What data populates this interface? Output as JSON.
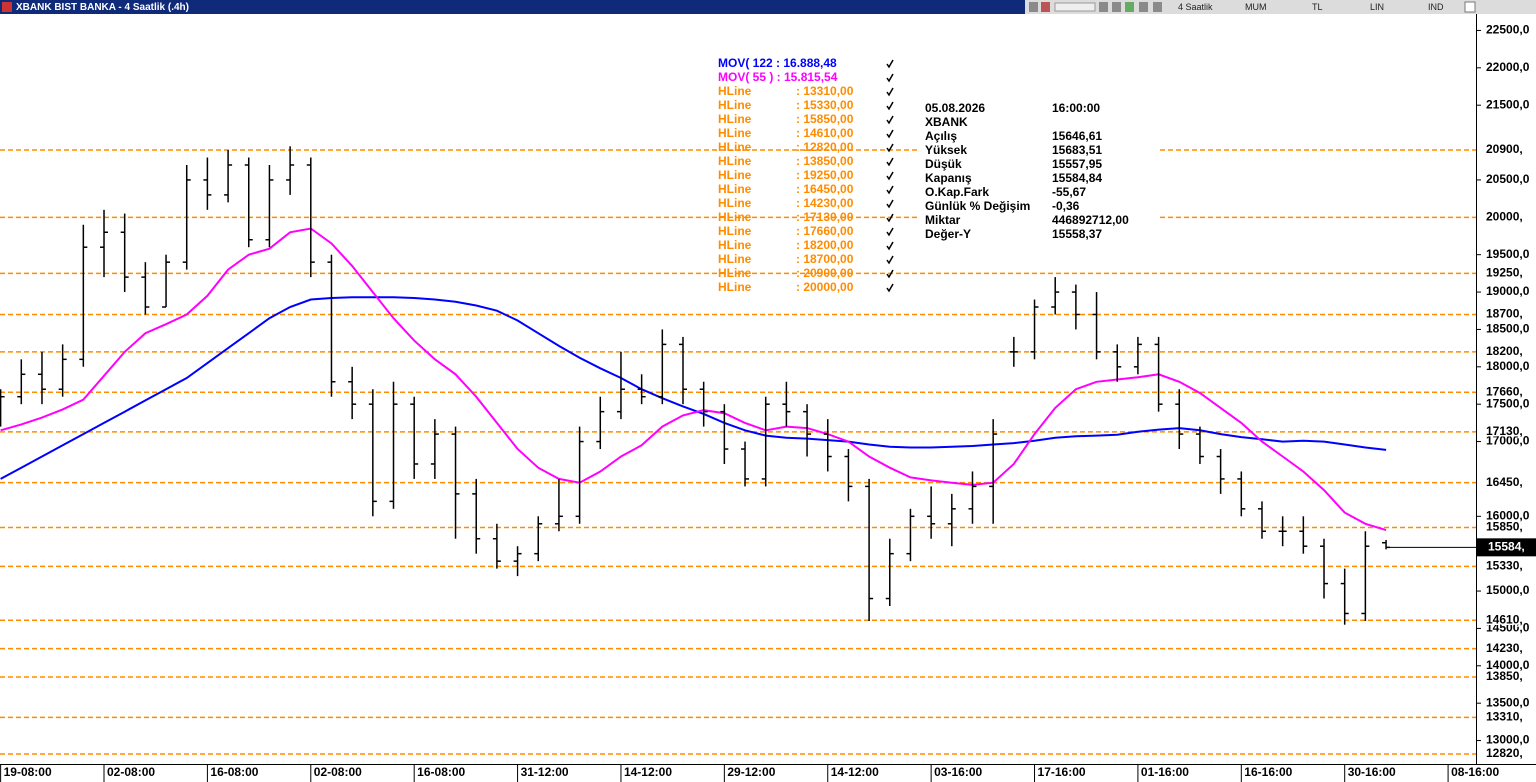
{
  "chart_data": {
    "type": "candlestick",
    "title": "XBANK BIST BANKA - 4 Saatlik (.4h)",
    "toolbar": [
      "4 Saatlik",
      "MUM",
      "TL",
      "LIN",
      "IND"
    ],
    "x": [
      0,
      1,
      2,
      3,
      4,
      5,
      6,
      7,
      8,
      9,
      10,
      11,
      12,
      13,
      14,
      15,
      16,
      17,
      18,
      19,
      20,
      21,
      22,
      23,
      24,
      25,
      26,
      27,
      28,
      29,
      30,
      31,
      32,
      33,
      34,
      35,
      36,
      37,
      38,
      39,
      40,
      41,
      42,
      43,
      44,
      45,
      46,
      47,
      48,
      49,
      50,
      51,
      52,
      53,
      54,
      55,
      56,
      57,
      58,
      59,
      60,
      61,
      62,
      63,
      64,
      65,
      66,
      67
    ],
    "open": [
      17300,
      17600,
      17900,
      17700,
      18100,
      19600,
      19800,
      19200,
      18800,
      19400,
      20500,
      20300,
      20700,
      19700,
      20500,
      20700,
      19400,
      17800,
      17500,
      16200,
      17500,
      16700,
      17100,
      16300,
      15700,
      15400,
      15500,
      15900,
      16000,
      17000,
      17400,
      17700,
      17600,
      18300,
      17700,
      17400,
      16900,
      16500,
      17500,
      17400,
      17100,
      16800,
      16400,
      14900,
      15500,
      16000,
      15900,
      16100,
      16400,
      18200,
      18200,
      18800,
      19000,
      18700,
      18200,
      18000,
      18300,
      17500,
      17100,
      16800,
      16500,
      16100,
      15800,
      15800,
      15600,
      15100,
      14700,
      15646.61
    ],
    "high": [
      17700,
      18100,
      18200,
      18300,
      19900,
      20100,
      20050,
      19400,
      19500,
      20700,
      20800,
      20900,
      20800,
      20700,
      20950,
      20800,
      19500,
      18000,
      17700,
      17800,
      17600,
      17300,
      17200,
      16500,
      15900,
      15600,
      16000,
      16500,
      17200,
      17600,
      18200,
      17900,
      18500,
      18400,
      17800,
      17500,
      17000,
      17600,
      17800,
      17500,
      17300,
      16900,
      16500,
      15700,
      16100,
      16400,
      16300,
      16600,
      17300,
      18400,
      18900,
      19200,
      19100,
      19000,
      18300,
      18400,
      18400,
      17700,
      17200,
      16900,
      16600,
      16200,
      16000,
      16000,
      15700,
      15300,
      15800,
      15683.51
    ],
    "low": [
      17200,
      17500,
      17500,
      17600,
      18000,
      19200,
      19000,
      18700,
      18800,
      19300,
      20100,
      20200,
      19600,
      19600,
      20300,
      19200,
      17600,
      17300,
      16000,
      16100,
      16500,
      16500,
      15700,
      15500,
      15300,
      15200,
      15400,
      15800,
      15900,
      16900,
      17300,
      17500,
      17500,
      17500,
      17200,
      16700,
      16400,
      16400,
      17200,
      16800,
      16600,
      16200,
      14600,
      14800,
      15400,
      15700,
      15600,
      15900,
      15900,
      18000,
      18100,
      18700,
      18500,
      18100,
      17800,
      17900,
      17400,
      16900,
      16700,
      16300,
      16000,
      15700,
      15600,
      15500,
      14900,
      14550,
      14600,
      15557.95
    ],
    "close": [
      17600,
      17900,
      17700,
      18100,
      19600,
      19800,
      19200,
      18800,
      19400,
      20500,
      20300,
      20700,
      19700,
      20500,
      20700,
      19400,
      17800,
      17500,
      16200,
      17500,
      16700,
      17100,
      16300,
      15700,
      15400,
      15500,
      15900,
      16000,
      17000,
      17400,
      17700,
      17600,
      18300,
      17700,
      17400,
      16900,
      16500,
      17500,
      17400,
      17100,
      16800,
      16400,
      14900,
      15500,
      16000,
      15900,
      16100,
      16400,
      17100,
      18200,
      18800,
      19000,
      18700,
      18200,
      18000,
      18300,
      17500,
      17100,
      16800,
      16500,
      16100,
      15800,
      15800,
      15600,
      15100,
      14700,
      15600,
      15584.84
    ],
    "color": "#000000",
    "series": [
      {
        "name": "MOV( 122 : 16.888,48",
        "color": "#0000ff",
        "values": [
          16500,
          16650,
          16800,
          16950,
          17100,
          17250,
          17400,
          17550,
          17700,
          17850,
          18050,
          18250,
          18450,
          18650,
          18800,
          18900,
          18920,
          18930,
          18930,
          18930,
          18920,
          18900,
          18870,
          18820,
          18750,
          18620,
          18450,
          18280,
          18120,
          17980,
          17850,
          17700,
          17580,
          17470,
          17370,
          17250,
          17150,
          17080,
          17050,
          17040,
          17020,
          17000,
          16960,
          16930,
          16920,
          16920,
          16930,
          16940,
          16960,
          16980,
          17010,
          17050,
          17070,
          17080,
          17090,
          17130,
          17160,
          17180,
          17150,
          17100,
          17060,
          17030,
          17000,
          17010,
          17000,
          16960,
          16920,
          16888.48
        ]
      },
      {
        "name": "MOV( 55 ) : 15.815,54",
        "color": "#ff00ff",
        "values": [
          17150,
          17230,
          17320,
          17430,
          17560,
          17880,
          18200,
          18450,
          18570,
          18700,
          18950,
          19300,
          19500,
          19580,
          19800,
          19850,
          19650,
          19350,
          19000,
          18650,
          18350,
          18100,
          17900,
          17600,
          17250,
          16900,
          16650,
          16500,
          16450,
          16600,
          16800,
          16950,
          17200,
          17350,
          17420,
          17380,
          17250,
          17150,
          17200,
          17180,
          17100,
          17000,
          16800,
          16650,
          16520,
          16480,
          16450,
          16420,
          16450,
          16700,
          17100,
          17450,
          17700,
          17800,
          17830,
          17860,
          17900,
          17800,
          17650,
          17450,
          17250,
          17000,
          16800,
          16600,
          16350,
          16050,
          15900,
          15815.54
        ]
      }
    ],
    "hline_color": "#ff8c00",
    "hlines": [
      {
        "name": "HLine",
        "value": 13310,
        "label": ": 13310,00",
        "axis_label": "13310,"
      },
      {
        "name": "HLine",
        "value": 15330,
        "label": ": 15330,00",
        "axis_label": "15330,"
      },
      {
        "name": "HLine",
        "value": 15850,
        "label": ": 15850,00",
        "axis_label": "15850,"
      },
      {
        "name": "HLine",
        "value": 14610,
        "label": ": 14610,00",
        "axis_label": "14610,"
      },
      {
        "name": "HLine",
        "value": 12820,
        "label": ": 12820,00",
        "axis_label": "12820,"
      },
      {
        "name": "HLine",
        "value": 13850,
        "label": ": 13850,00",
        "axis_label": "13850,"
      },
      {
        "name": "HLine",
        "value": 19250,
        "label": ": 19250,00",
        "axis_label": "19250,"
      },
      {
        "name": "HLine",
        "value": 16450,
        "label": ": 16450,00",
        "axis_label": "16450,"
      },
      {
        "name": "HLine",
        "value": 14230,
        "label": ": 14230,00",
        "axis_label": "14230,"
      },
      {
        "name": "HLine",
        "value": 17130,
        "label": ": 17130,00",
        "axis_label": "17130,"
      },
      {
        "name": "HLine",
        "value": 17660,
        "label": ": 17660,00",
        "axis_label": "17660,"
      },
      {
        "name": "HLine",
        "value": 18200,
        "label": ": 18200,00",
        "axis_label": "18200,"
      },
      {
        "name": "HLine",
        "value": 18700,
        "label": ": 18700,00",
        "axis_label": "18700,"
      },
      {
        "name": "HLine",
        "value": 20900,
        "label": ": 20900,00",
        "axis_label": "20900,"
      },
      {
        "name": "HLine",
        "value": 20000,
        "label": ": 20000,00",
        "axis_label": "20000,"
      }
    ],
    "last_value": 15584.84,
    "last_label": "15584,",
    "info": {
      "date": "05.08.2026",
      "time": "16:00:00",
      "symbol": "XBANK",
      "rows": [
        [
          "Açılış",
          "15646,61"
        ],
        [
          "Yüksek",
          "15683,51"
        ],
        [
          "Düşük",
          "15557,95"
        ],
        [
          "Kapanış",
          "15584,84"
        ],
        [
          "O.Kap.Fark",
          "-55,67"
        ],
        [
          "Günlük % Değişim",
          "-0,36"
        ],
        [
          "Miktar",
          "446892712,00"
        ],
        [
          "Değer-Y",
          "15558,37"
        ]
      ]
    },
    "xlim": [
      -0.03,
      71.35
    ],
    "xticks": [
      {
        "value": 0,
        "label": "19-08:00"
      },
      {
        "value": 5,
        "label": "02-08:00"
      },
      {
        "value": 10,
        "label": "16-08:00"
      },
      {
        "value": 15,
        "label": "02-08:00"
      },
      {
        "value": 20,
        "label": "16-08:00"
      },
      {
        "value": 25,
        "label": "31-12:00"
      },
      {
        "value": 30,
        "label": "14-12:00"
      },
      {
        "value": 35,
        "label": "29-12:00"
      },
      {
        "value": 40,
        "label": "14-12:00"
      },
      {
        "value": 45,
        "label": "03-16:00"
      },
      {
        "value": 50,
        "label": "17-16:00"
      },
      {
        "value": 55,
        "label": "01-16:00"
      },
      {
        "value": 60,
        "label": "16-16:00"
      },
      {
        "value": 65,
        "label": "30-16:00"
      },
      {
        "value": 70,
        "label": "08-16:00"
      }
    ],
    "ylim": [
      12713,
      22720
    ],
    "yticks": [
      {
        "value": 22500,
        "label": "22500,0"
      },
      {
        "value": 22000,
        "label": "22000,0"
      },
      {
        "value": 21500,
        "label": "21500,0"
      },
      {
        "value": 20500,
        "label": "20500,0"
      },
      {
        "value": 19500,
        "label": "19500,0"
      },
      {
        "value": 19000,
        "label": "19000,0"
      },
      {
        "value": 18500,
        "label": "18500,0"
      },
      {
        "value": 18000,
        "label": "18000,0"
      },
      {
        "value": 17500,
        "label": "17500,0"
      },
      {
        "value": 17000,
        "label": "17000,0"
      },
      {
        "value": 16000,
        "label": "16000,0"
      },
      {
        "value": 15000,
        "label": "15000,0"
      },
      {
        "value": 14500,
        "label": "14500,0"
      },
      {
        "value": 14000,
        "label": "14000,0"
      },
      {
        "value": 13500,
        "label": "13500,0"
      },
      {
        "value": 13000,
        "label": "13000,0"
      }
    ],
    "grid": false
  }
}
